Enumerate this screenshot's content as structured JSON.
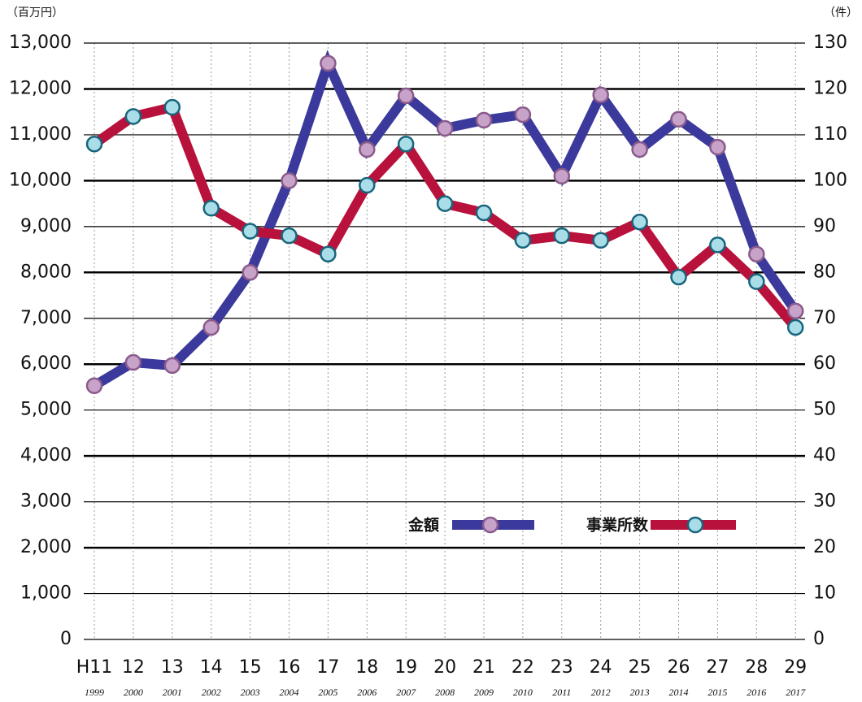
{
  "chart_data": {
    "type": "line",
    "y_unit_label": "（百万円）",
    "y2_unit_label": "（件）",
    "categories": [
      "H11",
      "12",
      "13",
      "14",
      "15",
      "16",
      "17",
      "18",
      "19",
      "20",
      "21",
      "22",
      "23",
      "24",
      "25",
      "26",
      "27",
      "28",
      "29"
    ],
    "x_sublabels": [
      "1999",
      "2000",
      "2001",
      "2002",
      "2003",
      "2004",
      "2005",
      "2006",
      "2007",
      "2008",
      "2009",
      "2010",
      "2011",
      "2012",
      "2013",
      "2014",
      "2015",
      "2016",
      "2017"
    ],
    "series": [
      {
        "name": "金額",
        "color": "#3b3a9c",
        "marker_fill": "#c7a2c9",
        "marker_edge": "#8a5a8c",
        "values": [
          5530,
          6040,
          5970,
          6800,
          8000,
          10000,
          12560,
          10680,
          11850,
          11140,
          11320,
          11440,
          10100,
          11870,
          10680,
          11340,
          10730,
          8400,
          7160
        ]
      },
      {
        "name": "事業所数",
        "color": "#b8123c",
        "marker_fill": "#a9dde8",
        "marker_edge": "#17657c",
        "axis": "y2",
        "values": [
          108,
          114,
          116,
          94,
          89,
          88,
          84,
          99,
          108,
          95,
          93,
          87,
          88,
          87,
          91,
          79,
          86,
          78,
          68
        ]
      }
    ],
    "ylim": [
      0,
      13000
    ],
    "yticks": [
      0,
      {
        "value": 1000,
        "label": "1,000"
      },
      {
        "value": 2000,
        "label": "2,000"
      },
      {
        "value": 3000,
        "label": "3,000"
      },
      {
        "value": 4000,
        "label": "4,000"
      },
      {
        "value": 5000,
        "label": "5,000"
      },
      {
        "value": 6000,
        "label": "6,000"
      },
      {
        "value": 7000,
        "label": "7,000"
      },
      {
        "value": 8000,
        "label": "8,000"
      },
      {
        "value": 9000,
        "label": "9,000"
      },
      {
        "value": 10000,
        "label": "10,000"
      },
      {
        "value": 11000,
        "label": "11,000"
      },
      {
        "value": 12000,
        "label": "12,000"
      },
      {
        "value": 13000,
        "label": "13,000"
      }
    ],
    "y2lim": [
      0,
      130
    ],
    "y2ticks": [
      0,
      10,
      20,
      30,
      40,
      50,
      60,
      70,
      80,
      90,
      100,
      110,
      120,
      130
    ],
    "grid": true
  }
}
